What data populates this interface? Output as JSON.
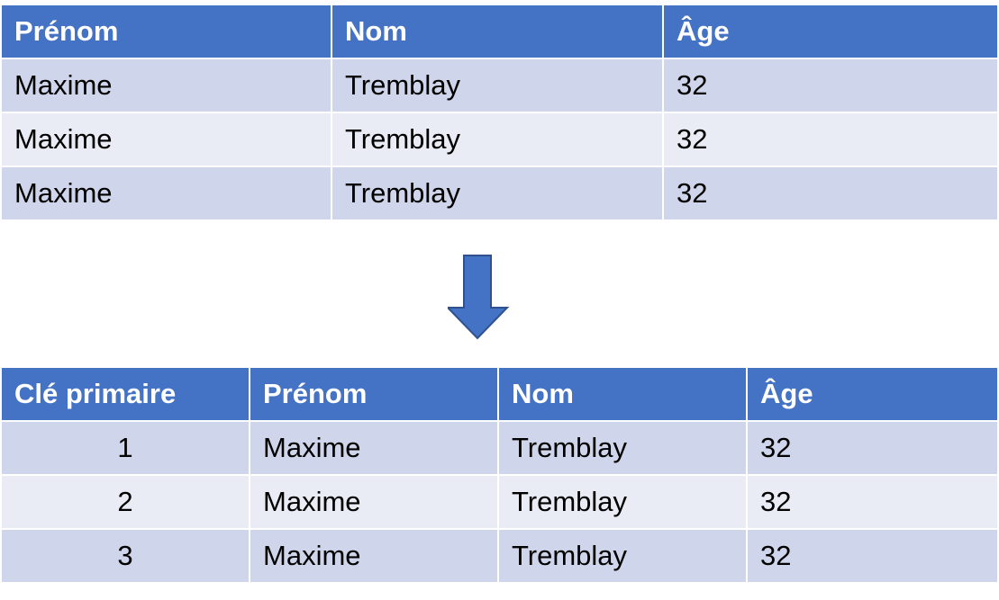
{
  "table_before": {
    "headers": [
      "Prénom",
      "Nom",
      "Âge"
    ],
    "rows": [
      [
        "Maxime",
        "Tremblay",
        "32"
      ],
      [
        "Maxime",
        "Tremblay",
        "32"
      ],
      [
        "Maxime",
        "Tremblay",
        "32"
      ]
    ]
  },
  "arrow_icon": "down-arrow-icon",
  "table_after": {
    "headers": [
      "Clé primaire",
      "Prénom",
      "Nom",
      "Âge"
    ],
    "rows": [
      [
        "1",
        "Maxime",
        "Tremblay",
        "32"
      ],
      [
        "2",
        "Maxime",
        "Tremblay",
        "32"
      ],
      [
        "3",
        "Maxime",
        "Tremblay",
        "32"
      ]
    ]
  },
  "colors": {
    "header": "#4472C4",
    "row_odd": "#CFD5EA",
    "row_even": "#E9EBF5",
    "arrow_fill": "#4472C4",
    "arrow_stroke": "#2F528F"
  }
}
